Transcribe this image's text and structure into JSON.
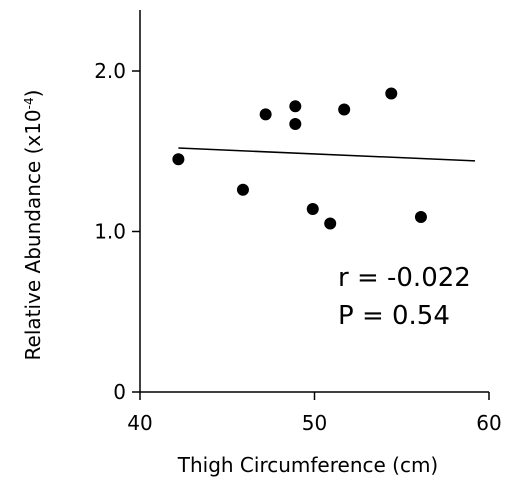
{
  "chart_data": {
    "type": "scatter",
    "title": "",
    "xlabel": "Thigh Circumference  (cm)",
    "ylabel": {
      "main": "Relative Abundance (x10",
      "exponent": "-4",
      "close": ")"
    },
    "xlim": [
      40,
      60
    ],
    "ylim": [
      0,
      2.0
    ],
    "x_ticks": [
      "40",
      "50",
      "60"
    ],
    "y_ticks": [
      "0",
      "1.0",
      "2.0"
    ],
    "grid": false,
    "legend": "none",
    "colors": {
      "points": "#000000",
      "trendline": "#000000",
      "axes": "#000000"
    },
    "series": [
      {
        "points": [
          {
            "x": 42.2,
            "y": 1.45
          },
          {
            "x": 45.9,
            "y": 1.26
          },
          {
            "x": 47.2,
            "y": 1.73
          },
          {
            "x": 48.9,
            "y": 1.78
          },
          {
            "x": 48.9,
            "y": 1.67
          },
          {
            "x": 49.9,
            "y": 1.14
          },
          {
            "x": 50.9,
            "y": 1.05
          },
          {
            "x": 51.7,
            "y": 1.76
          },
          {
            "x": 54.4,
            "y": 1.86
          },
          {
            "x": 56.1,
            "y": 1.09
          }
        ]
      }
    ],
    "trendline": {
      "x": [
        42.2,
        59.2
      ],
      "y": [
        1.52,
        1.44
      ]
    },
    "annotations": {
      "r": "r = -0.022",
      "p": "P = 0.54"
    }
  }
}
